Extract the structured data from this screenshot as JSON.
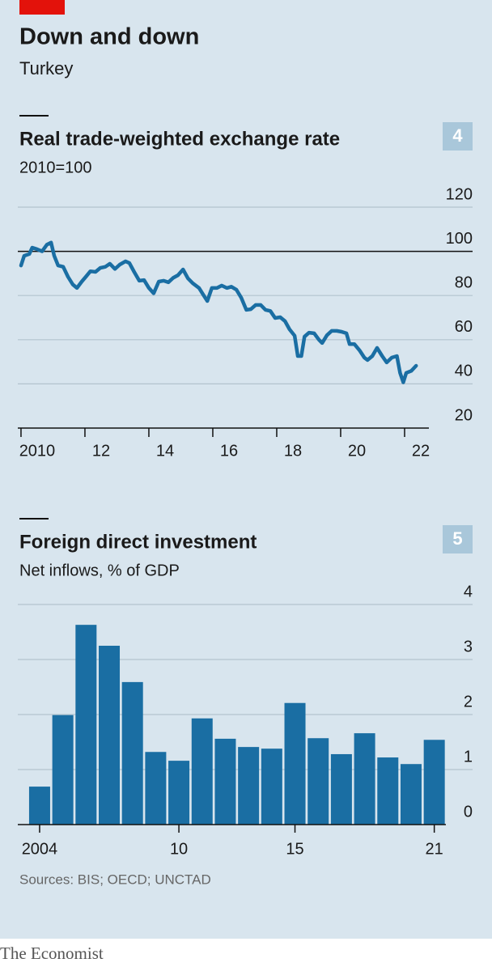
{
  "title": "Down and down",
  "subtitle": "Turkey",
  "sources": "Sources: BIS; OECD; UNCTAD",
  "brand": "The Economist",
  "chart_data": [
    {
      "type": "line",
      "panel_number": "4",
      "title": "Real trade-weighted exchange rate",
      "subtitle": "2010=100",
      "color": "#1a6ea3",
      "x": [
        2010.0,
        2010.1,
        2010.26,
        2010.35,
        2010.5,
        2010.66,
        2010.81,
        2010.94,
        2011.04,
        2011.16,
        2011.32,
        2011.47,
        2011.62,
        2011.75,
        2011.9,
        2012.03,
        2012.17,
        2012.33,
        2012.48,
        2012.64,
        2012.78,
        2012.94,
        2013.09,
        2013.27,
        2013.39,
        2013.54,
        2013.7,
        2013.85,
        2014.0,
        2014.15,
        2014.31,
        2014.46,
        2014.61,
        2014.76,
        2014.91,
        2015.07,
        2015.22,
        2015.37,
        2015.57,
        2015.7,
        2015.83,
        2015.97,
        2016.13,
        2016.28,
        2016.44,
        2016.58,
        2016.74,
        2016.89,
        2017.05,
        2017.19,
        2017.34,
        2017.5,
        2017.65,
        2017.8,
        2017.95,
        2018.11,
        2018.26,
        2018.4,
        2018.56,
        2018.66,
        2018.77,
        2018.87,
        2019.01,
        2019.17,
        2019.32,
        2019.42,
        2019.57,
        2019.72,
        2019.88,
        2020.03,
        2020.18,
        2020.28,
        2020.43,
        2020.59,
        2020.74,
        2020.84,
        2020.99,
        2021.14,
        2021.3,
        2021.44,
        2021.6,
        2021.76,
        2021.86,
        2021.96,
        2022.05,
        2022.21,
        2022.36
      ],
      "values": [
        93.6,
        98,
        98.8,
        101.7,
        101,
        100,
        103,
        104,
        98,
        93.6,
        93,
        88.5,
        85,
        83.4,
        86.3,
        88.5,
        91,
        90.7,
        92.5,
        93,
        94.4,
        92,
        94,
        95.5,
        94.7,
        90.7,
        86.7,
        87,
        83.4,
        81,
        86.3,
        86.7,
        86,
        88,
        89.2,
        91.8,
        87.8,
        85.6,
        83.4,
        80.4,
        77.5,
        83.4,
        83.4,
        84.5,
        83.4,
        84,
        82.6,
        79,
        73.5,
        73.8,
        75.7,
        75.7,
        73.5,
        73,
        69.8,
        70.2,
        68.4,
        64.7,
        61.8,
        52.6,
        52.6,
        61.4,
        63.2,
        62.9,
        60,
        58.5,
        62,
        64,
        64,
        63.6,
        62.9,
        58,
        58,
        55.2,
        51.9,
        50.8,
        52.6,
        56.3,
        52.6,
        49.7,
        51.9,
        52.6,
        45,
        40.7,
        45,
        45.9,
        48.2
      ],
      "xlim": [
        2009.9,
        2022.76
      ],
      "xticks": [
        2010,
        {
          "value": 2012,
          "label": "12"
        },
        {
          "value": 2014,
          "label": "14"
        },
        {
          "value": 2016,
          "label": "16"
        },
        {
          "value": 2018,
          "label": "18"
        },
        {
          "value": 2020,
          "label": "20"
        },
        {
          "value": 2022,
          "label": "22"
        }
      ],
      "ylim": [
        20,
        120
      ],
      "yticks": [
        20,
        40,
        60,
        80,
        100,
        120
      ],
      "reference_line": 100,
      "grid": true
    },
    {
      "type": "bar",
      "panel_number": "5",
      "title": "Foreign direct investment",
      "subtitle": "Net inflows, % of GDP",
      "color": "#1a6ea3",
      "categories": [
        "2004",
        null,
        null,
        null,
        null,
        null,
        "10",
        null,
        null,
        null,
        null,
        "15",
        null,
        null,
        null,
        null,
        null,
        "21"
      ],
      "values": [
        0.69,
        1.99,
        3.63,
        3.25,
        2.59,
        1.32,
        1.16,
        1.93,
        1.56,
        1.41,
        1.38,
        2.21,
        1.57,
        1.28,
        1.66,
        1.22,
        1.1,
        1.54
      ],
      "ylim": [
        0,
        4
      ],
      "yticks": [
        0,
        1,
        2,
        3,
        4
      ],
      "grid": true
    }
  ]
}
